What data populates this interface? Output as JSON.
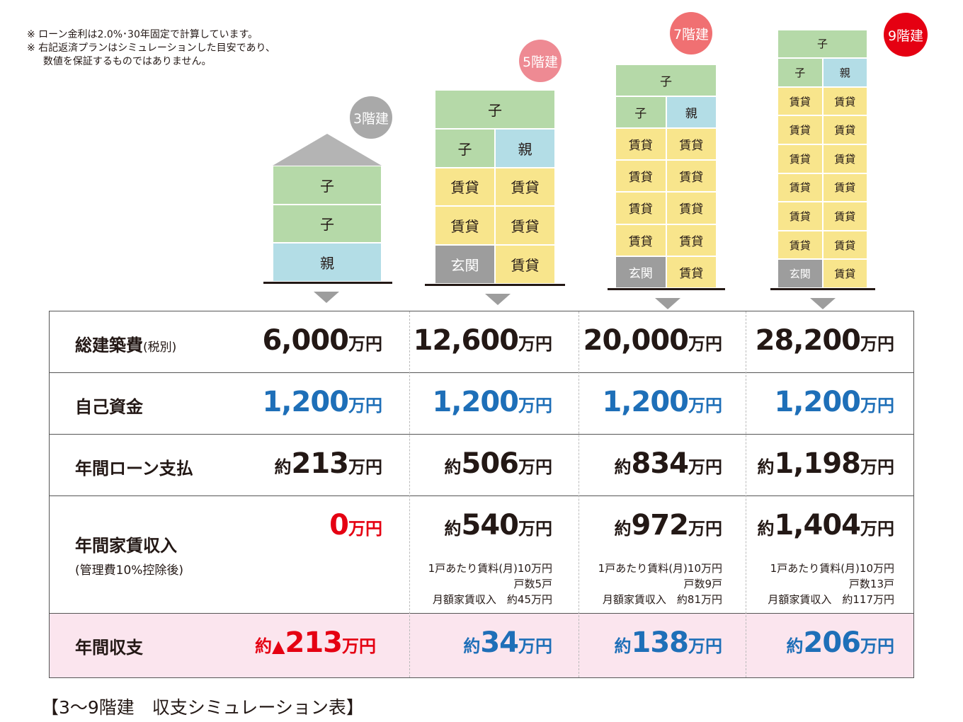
{
  "notes": [
    "※ ローン金利は2.0%･30年固定で計算しています。",
    "※ 右記返済プランはシミュレーションした目安であり、",
    "　  数値を保証するものではありません。"
  ],
  "colors": {
    "kid": "#b5d9a8",
    "parent": "#b3dde6",
    "rental": "#f8e58c",
    "entrance": "#9d9d9d",
    "badge3": "#a9a9a9",
    "badge5": "#ee8a93",
    "badge7": "#f07072",
    "badge9": "#e50012",
    "blue": "#1e6fb8",
    "red": "#e50012"
  },
  "cell_labels": {
    "kid": "子",
    "parent": "親",
    "rental": "賃貸",
    "entrance": "玄関"
  },
  "buildings": [
    {
      "badge": "3階建",
      "floors": [
        [
          "kid"
        ],
        [
          "kid"
        ],
        [
          "parent"
        ]
      ]
    },
    {
      "badge": "5階建",
      "floors": [
        [
          "kid"
        ],
        [
          "kid",
          "parent"
        ],
        [
          "rental",
          "rental"
        ],
        [
          "rental",
          "rental"
        ],
        [
          "entrance",
          "rental"
        ]
      ]
    },
    {
      "badge": "7階建",
      "floors": [
        [
          "kid"
        ],
        [
          "kid",
          "parent"
        ],
        [
          "rental",
          "rental"
        ],
        [
          "rental",
          "rental"
        ],
        [
          "rental",
          "rental"
        ],
        [
          "rental",
          "rental"
        ],
        [
          "entrance",
          "rental"
        ]
      ]
    },
    {
      "badge": "9階建",
      "floors": [
        [
          "kid"
        ],
        [
          "kid",
          "parent"
        ],
        [
          "rental",
          "rental"
        ],
        [
          "rental",
          "rental"
        ],
        [
          "rental",
          "rental"
        ],
        [
          "rental",
          "rental"
        ],
        [
          "rental",
          "rental"
        ],
        [
          "rental",
          "rental"
        ],
        [
          "entrance",
          "rental"
        ]
      ]
    }
  ],
  "table": {
    "rows": [
      {
        "label": "総建築費",
        "label_small": "(税別)",
        "sub": ""
      },
      {
        "label": "自己資金",
        "label_small": "",
        "sub": ""
      },
      {
        "label": "年間ローン支払",
        "label_small": "",
        "sub": ""
      },
      {
        "label": "年間家賃収入",
        "label_small": "",
        "sub": "(管理費10%控除後)"
      },
      {
        "label": "年間収支",
        "label_small": "",
        "sub": ""
      }
    ],
    "columns": [
      {
        "total_cost": {
          "prefix": "",
          "value": "6,000",
          "unit": "万円"
        },
        "own_funds": {
          "prefix": "",
          "value": "1,200",
          "unit": "万円"
        },
        "loan": {
          "prefix": "約",
          "value": "213",
          "unit": "万円"
        },
        "rent": {
          "prefix": "",
          "value": "0",
          "unit": "万円"
        },
        "rent_detail": [
          "",
          "",
          ""
        ],
        "balance": {
          "prefix": "約▲",
          "value": "213",
          "unit": "万円"
        }
      },
      {
        "total_cost": {
          "prefix": "",
          "value": "12,600",
          "unit": "万円"
        },
        "own_funds": {
          "prefix": "",
          "value": "1,200",
          "unit": "万円"
        },
        "loan": {
          "prefix": "約",
          "value": "506",
          "unit": "万円"
        },
        "rent": {
          "prefix": "約",
          "value": "540",
          "unit": "万円"
        },
        "rent_detail": [
          "1戸あたり賃料(月)10万円",
          "戸数5戸",
          "月額家賃収入　約45万円"
        ],
        "balance": {
          "prefix": "約",
          "value": "34",
          "unit": "万円"
        }
      },
      {
        "total_cost": {
          "prefix": "",
          "value": "20,000",
          "unit": "万円"
        },
        "own_funds": {
          "prefix": "",
          "value": "1,200",
          "unit": "万円"
        },
        "loan": {
          "prefix": "約",
          "value": "834",
          "unit": "万円"
        },
        "rent": {
          "prefix": "約",
          "value": "972",
          "unit": "万円"
        },
        "rent_detail": [
          "1戸あたり賃料(月)10万円",
          "戸数9戸",
          "月額家賃収入　約81万円"
        ],
        "balance": {
          "prefix": "約",
          "value": "138",
          "unit": "万円"
        }
      },
      {
        "total_cost": {
          "prefix": "",
          "value": "28,200",
          "unit": "万円"
        },
        "own_funds": {
          "prefix": "",
          "value": "1,200",
          "unit": "万円"
        },
        "loan": {
          "prefix": "約",
          "value": "1,198",
          "unit": "万円"
        },
        "rent": {
          "prefix": "約",
          "value": "1,404",
          "unit": "万円"
        },
        "rent_detail": [
          "1戸あたり賃料(月)10万円",
          "戸数13戸",
          "月額家賃収入　約117万円"
        ],
        "balance": {
          "prefix": "約",
          "value": "206",
          "unit": "万円"
        }
      }
    ]
  },
  "caption": "【3〜9階建　収支シミュレーション表】"
}
